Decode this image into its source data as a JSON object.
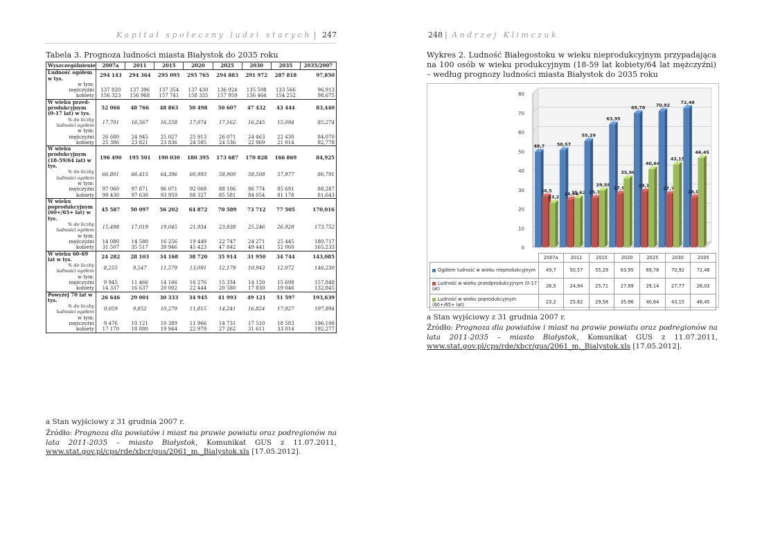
{
  "left": {
    "header": {
      "title": "Kapitał społeczny ludzi starych",
      "page": "247"
    },
    "table_caption": "Tabela 3. Prognoza ludności miasta Białystok do 2035 roku",
    "table": {
      "headers": [
        "Wyszczególnienie",
        "2007a",
        "2011",
        "2015",
        "2020",
        "2025",
        "2030",
        "2035",
        "2035/2007"
      ],
      "rows": [
        {
          "label": "Ludność ogółem w tys.",
          "v": [
            "294 143",
            "294 364",
            "295 095",
            "295 765",
            "294 883",
            "291 972",
            "287 818",
            "97,850"
          ]
        },
        {
          "label": "w tym:",
          "v": [
            "",
            "",
            "",
            "",
            "",
            "",
            "",
            ""
          ]
        },
        {
          "label": "mężczyźni",
          "v": [
            "137 820",
            "137 396",
            "137 354",
            "137 430",
            "136 924",
            "135 508",
            "133 566",
            "96,913"
          ]
        },
        {
          "label": "kobiety",
          "v": [
            "156 323",
            "156 968",
            "157 741",
            "158 335",
            "157 959",
            "156 464",
            "154 252",
            "98,675"
          ]
        },
        {
          "label": "W wieku przed-produkcyjnym (0-17 lat) w tys.",
          "v": [
            "52 066",
            "48 766",
            "48 863",
            "50 498",
            "50 607",
            "47 432",
            "43 444",
            "83,440"
          ]
        },
        {
          "label": "% do liczby ludności ogółem",
          "v": [
            "17,701",
            "16,567",
            "16,558",
            "17,074",
            "17,162",
            "16,245",
            "15,094",
            "85,274"
          ]
        },
        {
          "label": "w tym:",
          "v": [
            "",
            "",
            "",
            "",
            "",
            "",
            "",
            ""
          ]
        },
        {
          "label": "mężczyźni",
          "v": [
            "26 680",
            "24 945",
            "25 027",
            "25 913",
            "26 071",
            "24 463",
            "22 430",
            "84,070"
          ]
        },
        {
          "label": "kobiety",
          "v": [
            "25 386",
            "23 821",
            "23 836",
            "24 585",
            "24 536",
            "22 969",
            "21 014",
            "82,778"
          ]
        },
        {
          "label": "W wieku produkcyjnym (18-59/64 lat) w tys.",
          "v": [
            "196 490",
            "195 501",
            "190 030",
            "180 395",
            "173 687",
            "170 828",
            "166 869",
            "84,925"
          ]
        },
        {
          "label": "% do liczby ludności ogółem",
          "v": [
            "66,801",
            "66,415",
            "64,396",
            "60,993",
            "58,900",
            "58,508",
            "57,977",
            "86,791"
          ]
        },
        {
          "label": "w tym:",
          "v": [
            "",
            "",
            "",
            "",
            "",
            "",
            "",
            ""
          ]
        },
        {
          "label": "mężczyźni",
          "v": [
            "97 060",
            "97 871",
            "96 071",
            "92 068",
            "88 106",
            "86 774",
            "85 691",
            "88,287"
          ]
        },
        {
          "label": "kobiety",
          "v": [
            "99 430",
            "97 630",
            "93 959",
            "88 327",
            "85 581",
            "84 054",
            "81 178",
            "81,643"
          ]
        },
        {
          "label": "W wieku poprodukcyjnym (60+/65+ lat) w tys.",
          "v": [
            "45 587",
            "50 097",
            "56 202",
            "64 872",
            "70 589",
            "73 712",
            "77 505",
            "170,016"
          ]
        },
        {
          "label": "% do liczby ludności ogółem",
          "v": [
            "15,498",
            "17,019",
            "19,045",
            "21,934",
            "23,938",
            "25,246",
            "26,928",
            "173,752"
          ]
        },
        {
          "label": "w tym:",
          "v": [
            "",
            "",
            "",
            "",
            "",
            "",
            "",
            ""
          ]
        },
        {
          "label": "mężczyźni",
          "v": [
            "14 080",
            "14 580",
            "16 256",
            "19 449",
            "22 747",
            "24 271",
            "25 445",
            "180,717"
          ]
        },
        {
          "label": "kobiety",
          "v": [
            "31 507",
            "35 517",
            "39 946",
            "45 423",
            "47 842",
            "49 441",
            "52 060",
            "165,233"
          ]
        },
        {
          "label": "W wieku 60-69 lat w tys.",
          "v": [
            "24 282",
            "28 103",
            "34 168",
            "38 720",
            "35 914",
            "31 950",
            "34 744",
            "143,085"
          ]
        },
        {
          "label": "% do liczby ludności ogółem",
          "v": [
            "8,255",
            "9,547",
            "11,579",
            "13,091",
            "12,179",
            "10,943",
            "12,072",
            "146,230"
          ]
        },
        {
          "label": "w tym:",
          "v": [
            "",
            "",
            "",
            "",
            "",
            "",
            "",
            ""
          ]
        },
        {
          "label": "mężczyźni",
          "v": [
            "9 945",
            "11 466",
            "14 166",
            "16 276",
            "15 334",
            "14 120",
            "15 698",
            "157,848"
          ]
        },
        {
          "label": "kobiety",
          "v": [
            "14 337",
            "16 637",
            "20 002",
            "22 444",
            "20 580",
            "17 830",
            "19 046",
            "132,845"
          ]
        },
        {
          "label": "Powyżej 70 lat w tys.",
          "v": [
            "26 646",
            "29 001",
            "30 333",
            "34 945",
            "41 993",
            "49 121",
            "51 597",
            "193,639"
          ]
        },
        {
          "label": "% do liczby ludności ogółem",
          "v": [
            "9,059",
            "9,852",
            "10,279",
            "11,815",
            "14,241",
            "16,824",
            "17,927",
            "197,894"
          ]
        },
        {
          "label": "w tym:",
          "v": [
            "",
            "",
            "",
            "",
            "",
            "",
            "",
            ""
          ]
        },
        {
          "label": "mężczyźni",
          "v": [
            "9 476",
            "10 121",
            "10 389",
            "11 966",
            "14 731",
            "17 510",
            "18 583",
            "196,106"
          ]
        },
        {
          "label": "kobiety",
          "v": [
            "17 170",
            "18 880",
            "19 944",
            "22 979",
            "27 262",
            "31 611",
            "33 014",
            "192,277"
          ]
        }
      ]
    },
    "footnote": "a Stan wyjściowy z 31 grudnia 2007 r.",
    "source_prefix": "Źródło: ",
    "source_italic": "Prognoza dla powiatów i miast na prawie powiatu oraz podregionów na lata 2011-2035 – miasto Białystok",
    "source_mid": ", Komunikat GUS z 11.07.2011, ",
    "source_url": "www.stat.gov.pl/cps/rde/xbcr/gus/2061_m._Bialystok.xls",
    "source_end": " [17.05.2012]."
  },
  "right": {
    "header": {
      "page": "248",
      "title": "Andrzej Klimczuk"
    },
    "chart_caption": "Wykres 2. Ludność Białegostoku w wieku nieprodukcyjnym przypadająca na 100 osób w wieku produkcyjnym (18-59 lat kobiety/64 lat mężczyźni) – według prognozy ludności miasta Białystok do 2035 roku",
    "footnote": "a Stan wyjściowy z 31 grudnia 2007 r.",
    "source_prefix": "Źródło: ",
    "source_italic": "Prognoza dla powiatów i miast na prawie powiatu oraz podregionów na lata 2011-2035 – miasto Białystok",
    "source_mid": ", Komunikat GUS z 11.07.2011, ",
    "source_url": "www.stat.gov.pl/cps/rde/xbcr/gus/2061_m._Bialystok.xls",
    "source_end": " [17.05.2012]."
  },
  "chart_data": {
    "type": "bar",
    "categories": [
      "2007a",
      "2011",
      "2015",
      "2020",
      "2025",
      "2030",
      "2035"
    ],
    "series": [
      {
        "name": "Ogółem ludność w wieku nieprodukcyjnym",
        "color": "#4f81bd",
        "values": [
          49.7,
          50.57,
          55.29,
          63.95,
          69.78,
          70.92,
          72.48
        ],
        "labels": [
          "49,7",
          "50,57",
          "55,29",
          "63,95",
          "69,78",
          "70,92",
          "72,48"
        ]
      },
      {
        "name": "Ludność w wieku przedprodukcyjnym (0-17 lat)",
        "color": "#c0504d",
        "values": [
          26.5,
          24.94,
          25.71,
          27.99,
          29.14,
          27.77,
          26.03
        ],
        "labels": [
          "26,5",
          "24,94",
          "25,71",
          "27,99",
          "29,14",
          "27,77",
          "26,03"
        ]
      },
      {
        "name": "Ludność w wieku poprodukcyjnym (60+/65+ lat)",
        "color": "#9bbb59",
        "values": [
          23.2,
          25.62,
          29.58,
          35.96,
          40.64,
          43.15,
          46.45
        ],
        "labels": [
          "23,2",
          "25,62",
          "29,58",
          "35,96",
          "40,64",
          "43,15",
          "46,45"
        ]
      }
    ],
    "ylim": [
      0,
      80
    ],
    "yticks": [
      0,
      10,
      20,
      30,
      40,
      50,
      60,
      70,
      80
    ],
    "grid": true,
    "legend": "bottom data table"
  }
}
